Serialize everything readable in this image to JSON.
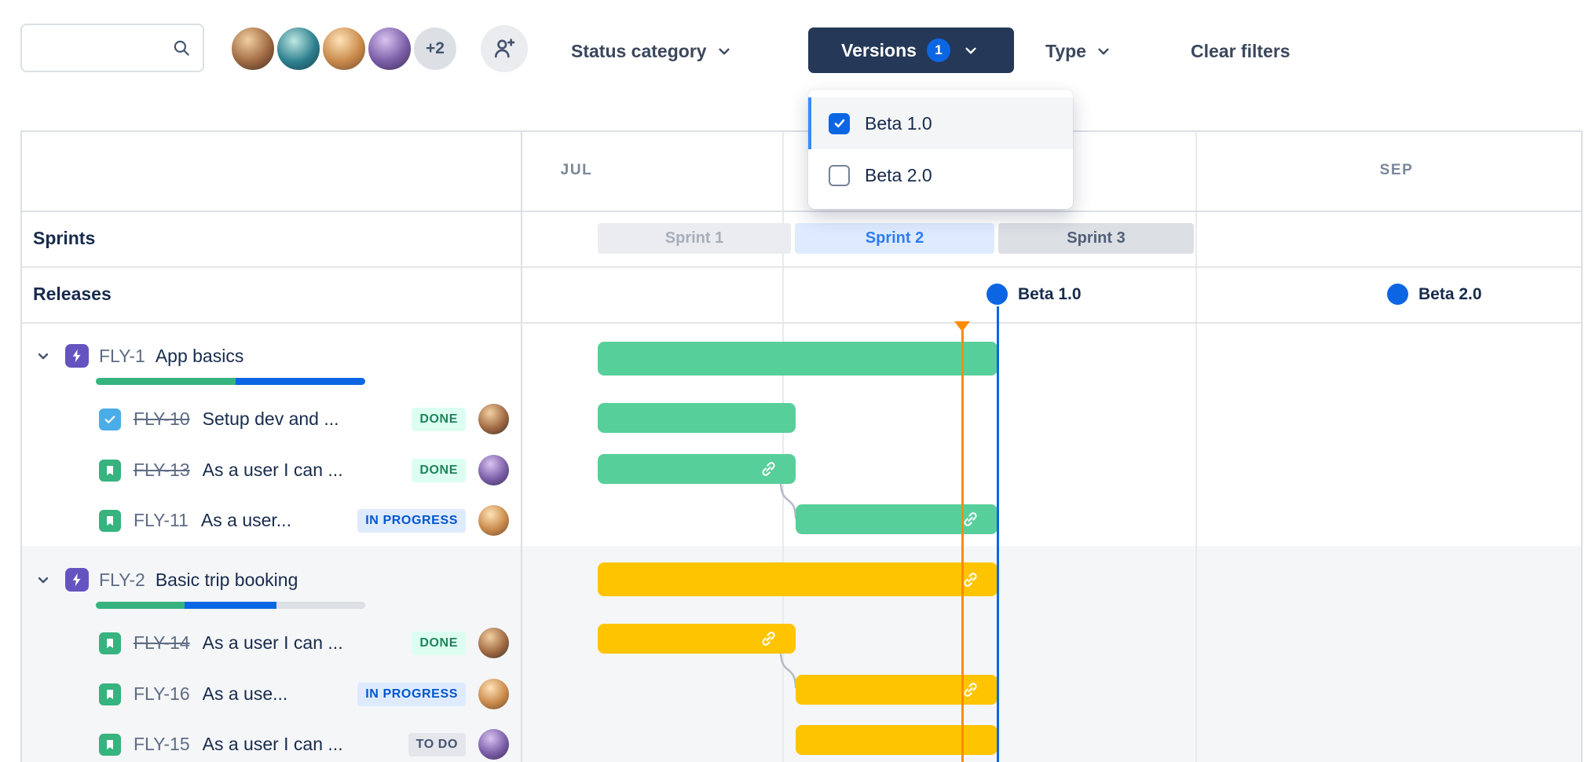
{
  "colors": {
    "accent_blue": "#0C66E4",
    "epic_green_bar": "#57CF9A",
    "epic_yellow_bar": "#FFC400",
    "today_marker_orange": "#FF8B00",
    "versions_button_bg": "#253858",
    "sprint_active_bg": "#DEEBFF"
  },
  "toolbar": {
    "search_placeholder": "",
    "overflow_count": "+2",
    "status_category_label": "Status category",
    "versions_label": "Versions",
    "versions_selected_count": "1",
    "type_label": "Type",
    "clear_filters_label": "Clear filters"
  },
  "versions_dropdown": {
    "options": [
      {
        "label": "Beta 1.0",
        "checked": true
      },
      {
        "label": "Beta 2.0",
        "checked": false
      }
    ]
  },
  "timeline": {
    "visible_months": [
      "JUL",
      "SEP"
    ],
    "sprints_row_label": "Sprints",
    "releases_row_label": "Releases",
    "sprints": [
      "Sprint 1",
      "Sprint 2",
      "Sprint 3"
    ],
    "releases": [
      "Beta 1.0",
      "Beta 2.0"
    ]
  },
  "issues": {
    "epics": [
      {
        "key": "FLY-1",
        "title": "App basics",
        "bar_color": "#57CF9A",
        "progress": {
          "done": 52,
          "inprogress": 48,
          "todo": 0
        },
        "children": [
          {
            "key": "FLY-10",
            "type": "task",
            "title": "Setup dev and ...",
            "status": "DONE",
            "completed": true
          },
          {
            "key": "FLY-13",
            "type": "story",
            "title": "As a user I can ...",
            "status": "DONE",
            "completed": true
          },
          {
            "key": "FLY-11",
            "type": "story",
            "title": "As a user...",
            "status": "IN PROGRESS",
            "completed": false
          }
        ]
      },
      {
        "key": "FLY-2",
        "title": "Basic trip booking",
        "bar_color": "#FFC400",
        "progress": {
          "done": 33,
          "inprogress": 34,
          "todo": 33
        },
        "children": [
          {
            "key": "FLY-14",
            "type": "story",
            "title": "As a user I can ...",
            "status": "DONE",
            "completed": true
          },
          {
            "key": "FLY-16",
            "type": "story",
            "title": "As a use...",
            "status": "IN PROGRESS",
            "completed": false
          },
          {
            "key": "FLY-15",
            "type": "story",
            "title": "As a user I can ...",
            "status": "TO DO",
            "completed": false
          }
        ]
      }
    ]
  }
}
